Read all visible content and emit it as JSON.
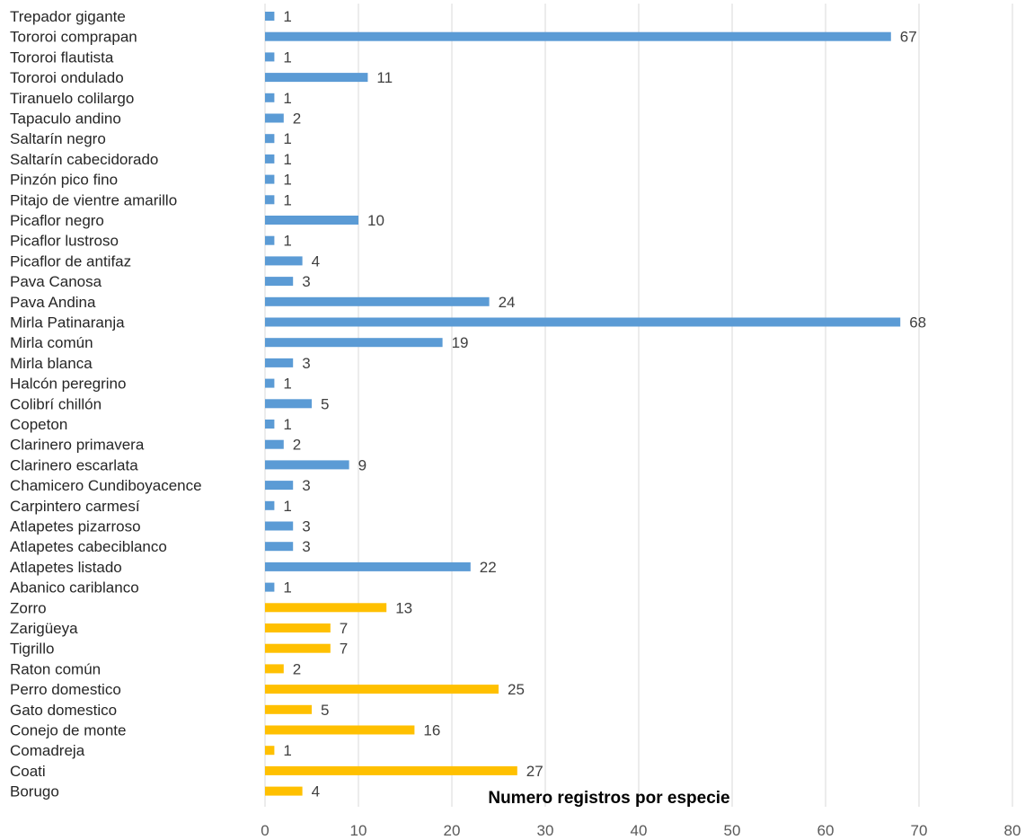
{
  "chart_data": {
    "type": "bar",
    "orientation": "horizontal",
    "title": "",
    "xlabel": "Numero registros por especie",
    "ylabel": "",
    "xlim": [
      0,
      80
    ],
    "xticks": [
      0,
      10,
      20,
      30,
      40,
      50,
      60,
      70,
      80
    ],
    "grid": true,
    "legend": "none",
    "colors": {
      "birds": "#5b9bd5",
      "mammals": "#ffc000"
    },
    "bars": [
      {
        "label": "Trepador gigante",
        "value": 1,
        "group": "birds"
      },
      {
        "label": "Tororoi comprapan",
        "value": 67,
        "group": "birds"
      },
      {
        "label": "Tororoi flautista",
        "value": 1,
        "group": "birds"
      },
      {
        "label": "Tororoi ondulado",
        "value": 11,
        "group": "birds"
      },
      {
        "label": "Tiranuelo colilargo",
        "value": 1,
        "group": "birds"
      },
      {
        "label": "Tapaculo andino",
        "value": 2,
        "group": "birds"
      },
      {
        "label": "Saltarín negro",
        "value": 1,
        "group": "birds"
      },
      {
        "label": "Saltarín cabecidorado",
        "value": 1,
        "group": "birds"
      },
      {
        "label": "Pinzón pico fino",
        "value": 1,
        "group": "birds"
      },
      {
        "label": "Pitajo de vientre amarillo",
        "value": 1,
        "group": "birds"
      },
      {
        "label": "Picaflor negro",
        "value": 10,
        "group": "birds"
      },
      {
        "label": "Picaflor lustroso",
        "value": 1,
        "group": "birds"
      },
      {
        "label": "Picaflor de antifaz",
        "value": 4,
        "group": "birds"
      },
      {
        "label": "Pava Canosa",
        "value": 3,
        "group": "birds"
      },
      {
        "label": "Pava Andina",
        "value": 24,
        "group": "birds"
      },
      {
        "label": "Mirla Patinaranja",
        "value": 68,
        "group": "birds"
      },
      {
        "label": "Mirla común",
        "value": 19,
        "group": "birds"
      },
      {
        "label": "Mirla blanca",
        "value": 3,
        "group": "birds"
      },
      {
        "label": "Halcón peregrino",
        "value": 1,
        "group": "birds"
      },
      {
        "label": "Colibrí chillón",
        "value": 5,
        "group": "birds"
      },
      {
        "label": "Copeton",
        "value": 1,
        "group": "birds"
      },
      {
        "label": "Clarinero primavera",
        "value": 2,
        "group": "birds"
      },
      {
        "label": "Clarinero escarlata",
        "value": 9,
        "group": "birds"
      },
      {
        "label": "Chamicero Cundiboyacence",
        "value": 3,
        "group": "birds"
      },
      {
        "label": "Carpintero carmesí",
        "value": 1,
        "group": "birds"
      },
      {
        "label": "Atlapetes pizarroso",
        "value": 3,
        "group": "birds"
      },
      {
        "label": "Atlapetes cabeciblanco",
        "value": 3,
        "group": "birds"
      },
      {
        "label": "Atlapetes listado",
        "value": 22,
        "group": "birds"
      },
      {
        "label": "Abanico cariblanco",
        "value": 1,
        "group": "birds"
      },
      {
        "label": "Zorro",
        "value": 13,
        "group": "mammals"
      },
      {
        "label": "Zarigüeya",
        "value": 7,
        "group": "mammals"
      },
      {
        "label": "Tigrillo",
        "value": 7,
        "group": "mammals"
      },
      {
        "label": "Raton común",
        "value": 2,
        "group": "mammals"
      },
      {
        "label": "Perro domestico",
        "value": 25,
        "group": "mammals"
      },
      {
        "label": "Gato domestico",
        "value": 5,
        "group": "mammals"
      },
      {
        "label": "Conejo de monte",
        "value": 16,
        "group": "mammals"
      },
      {
        "label": "Comadreja",
        "value": 1,
        "group": "mammals"
      },
      {
        "label": "Coati",
        "value": 27,
        "group": "mammals"
      },
      {
        "label": "Borugo",
        "value": 4,
        "group": "mammals"
      }
    ]
  }
}
